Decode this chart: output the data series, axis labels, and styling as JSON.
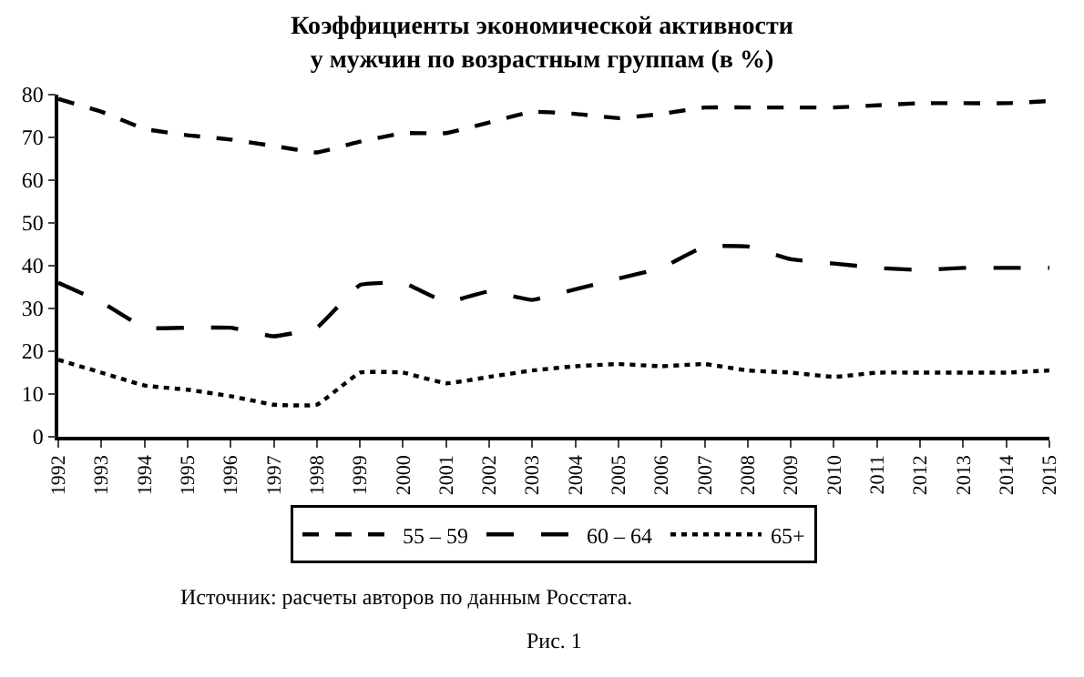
{
  "chart_data": {
    "type": "line",
    "title": "Коэффициенты экономической активности\nу мужчин по возрастным группам (в %)",
    "x": [
      1992,
      1993,
      1994,
      1995,
      1996,
      1997,
      1998,
      1999,
      2000,
      2001,
      2002,
      2003,
      2004,
      2005,
      2006,
      2007,
      2008,
      2009,
      2010,
      2011,
      2012,
      2013,
      2014,
      2015
    ],
    "series": [
      {
        "name": "55 – 59",
        "color": "#000000",
        "line_style": "dashed",
        "values": [
          79,
          76,
          72,
          70.5,
          69.5,
          68,
          66.5,
          69,
          71,
          71,
          73.5,
          76,
          75.5,
          74.5,
          75.5,
          77,
          77,
          77,
          77,
          77.5,
          78,
          78,
          78,
          78.5
        ]
      },
      {
        "name": "60 – 64",
        "color": "#000000",
        "line_style": "longdash",
        "values": [
          36,
          31.5,
          25.5,
          25.5,
          25.5,
          23.5,
          25.5,
          35.5,
          36,
          31.5,
          34,
          32,
          34.5,
          37,
          39.5,
          44.5,
          44.5,
          41.5,
          40.5,
          39.5,
          39,
          39.5,
          39.5,
          39.5
        ]
      },
      {
        "name": "65+",
        "color": "#000000",
        "line_style": "dotted",
        "values": [
          18,
          15,
          12,
          11,
          9.5,
          7.5,
          7.5,
          15,
          15,
          12.5,
          14,
          15.5,
          16.5,
          17,
          16.5,
          17,
          15.5,
          15,
          14,
          15,
          15,
          15,
          15,
          15.5
        ]
      }
    ],
    "xlim": [
      1992,
      2015
    ],
    "xticks": [
      1992,
      1993,
      1994,
      1995,
      1996,
      1997,
      1998,
      1999,
      2000,
      2001,
      2002,
      2003,
      2004,
      2005,
      2006,
      2007,
      2008,
      2009,
      2010,
      2011,
      2012,
      2013,
      2014,
      2015
    ],
    "ylim": [
      0,
      80
    ],
    "yticks": [
      0,
      10,
      20,
      30,
      40,
      50,
      60,
      70,
      80
    ],
    "grid": false,
    "legend": "bottom",
    "marker": "none",
    "annotations": [
      "Источник: расчеты авторов по данным Росстата.",
      "Рис. 1"
    ]
  }
}
